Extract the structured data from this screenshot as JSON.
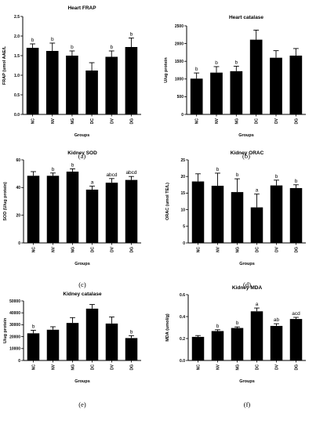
{
  "chart_data": [
    {
      "type": "bar",
      "panel": "(a)",
      "title": "Heart FRAP",
      "xlabel": "Groups",
      "ylabel": "FRAP (umol AAE/L",
      "ylim": [
        0,
        2.5
      ],
      "yticks": [
        0.0,
        0.5,
        1.0,
        1.5,
        2.0,
        2.5
      ],
      "ytick_labels": [
        "0.0",
        "0.5",
        "1.0",
        "1.5",
        "2.0",
        "2.5"
      ],
      "categories": [
        "NC",
        "NV",
        "NG",
        "DC",
        "DV",
        "DG"
      ],
      "values": [
        1.7,
        1.62,
        1.5,
        1.12,
        1.47,
        1.72
      ],
      "errors": [
        0.1,
        0.2,
        0.12,
        0.2,
        0.15,
        0.23
      ],
      "letters": [
        "b",
        "b",
        "b",
        "",
        "b",
        "b"
      ]
    },
    {
      "type": "bar",
      "panel": "(b)",
      "title": "Heart catalase",
      "xlabel": "Groups",
      "ylabel": "U/ug protein",
      "ylim": [
        0,
        2500
      ],
      "yticks": [
        0,
        500,
        1000,
        1500,
        2000,
        2500
      ],
      "ytick_labels": [
        "0",
        "500",
        "1000",
        "1500",
        "2000",
        "2500"
      ],
      "categories": [
        "NC",
        "NV",
        "NG",
        "DC",
        "DV",
        "DG"
      ],
      "values": [
        1010,
        1180,
        1220,
        2110,
        1600,
        1660
      ],
      "errors": [
        160,
        170,
        140,
        270,
        200,
        200
      ],
      "letters": [
        "b",
        "b",
        "b",
        "",
        "",
        ""
      ]
    },
    {
      "type": "bar",
      "panel": "(c)",
      "title": "Kidney SOD",
      "xlabel": "Groups",
      "ylabel": "SOD (U/ug protein)",
      "ylim": [
        0,
        60
      ],
      "yticks": [
        0,
        20,
        40,
        60
      ],
      "ytick_labels": [
        "0",
        "20",
        "40",
        "60"
      ],
      "categories": [
        "NC",
        "NV",
        "NG",
        "DC",
        "DV",
        "DG"
      ],
      "values": [
        48.5,
        48.5,
        51.5,
        38.5,
        43.5,
        45.5
      ],
      "errors": [
        3.0,
        2.0,
        2.0,
        2.5,
        3.0,
        2.5
      ],
      "letters": [
        "",
        "b",
        "b",
        "a",
        "abcd",
        "abcd"
      ]
    },
    {
      "type": "bar",
      "panel": "(d)",
      "title": "Kidney ORAC",
      "xlabel": "Groups",
      "ylabel": "ORAC (umol TE/L)",
      "ylim": [
        0,
        25
      ],
      "yticks": [
        0,
        5,
        10,
        15,
        20,
        25
      ],
      "ytick_labels": [
        "0",
        "5",
        "10",
        "15",
        "20",
        "25"
      ],
      "categories": [
        "NC",
        "NV",
        "NG",
        "DC",
        "DV",
        "DG"
      ],
      "values": [
        18.5,
        17.2,
        15.3,
        10.7,
        17.3,
        16.5
      ],
      "errors": [
        2.3,
        3.8,
        4.0,
        4.0,
        1.6,
        1.0
      ],
      "letters": [
        "",
        "b",
        "b",
        "a",
        "b",
        "b"
      ]
    },
    {
      "type": "bar",
      "panel": "(e)",
      "title": "Kidney catalase",
      "xlabel": "Groups",
      "ylabel": "U/ug protein",
      "ylim": [
        0,
        50000
      ],
      "yticks": [
        0,
        10000,
        20000,
        30000,
        40000,
        50000
      ],
      "ytick_labels": [
        "0",
        "10000",
        "20000",
        "30000",
        "40000",
        "50000"
      ],
      "categories": [
        "NC",
        "NV",
        "NG",
        "DC",
        "DV",
        "DG"
      ],
      "values": [
        22800,
        25800,
        31500,
        43500,
        31000,
        18800
      ],
      "errors": [
        2500,
        2500,
        4500,
        3500,
        5500,
        2000
      ],
      "letters": [
        "b",
        "",
        "",
        "",
        "",
        "b"
      ]
    },
    {
      "type": "bar",
      "panel": "(f)",
      "title": "Kidney MDA",
      "xlabel": "Groups",
      "ylabel": "MDA (umol/g)",
      "ylim": [
        0,
        0.6
      ],
      "yticks": [
        0.0,
        0.2,
        0.4,
        0.6
      ],
      "ytick_labels": [
        "0.0",
        "0.2",
        "0.4",
        "0.6"
      ],
      "categories": [
        "NC",
        "NV",
        "NG",
        "DC",
        "DV",
        "DG"
      ],
      "values": [
        0.215,
        0.268,
        0.296,
        0.448,
        0.315,
        0.378
      ],
      "errors": [
        0.012,
        0.012,
        0.01,
        0.03,
        0.02,
        0.015
      ],
      "letters": [
        "",
        "b",
        "b",
        "a",
        "ab",
        "acd"
      ]
    }
  ]
}
